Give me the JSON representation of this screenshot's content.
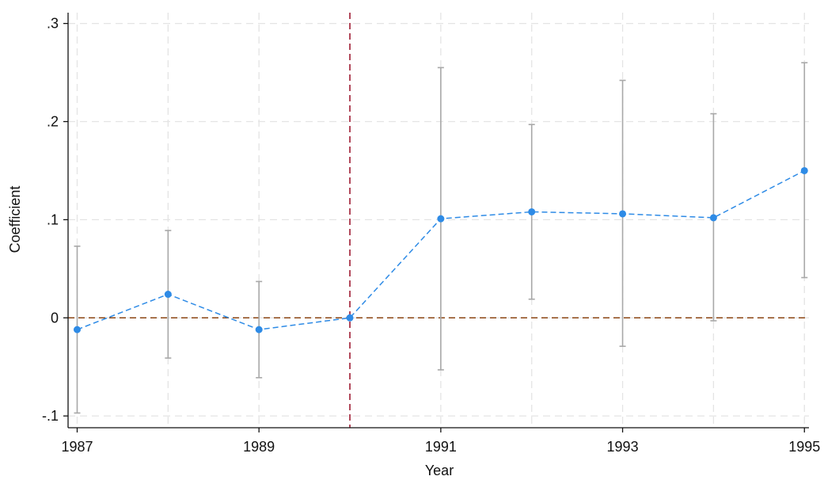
{
  "chart_data": {
    "type": "scatter",
    "title": "",
    "xlabel": "Year",
    "ylabel": "Coefficient",
    "xlim": [
      1986.9,
      1995.05
    ],
    "ylim": [
      -0.112,
      0.311
    ],
    "x_ticks": [
      {
        "value": 1987,
        "label": "1987"
      },
      {
        "value": 1989,
        "label": "1989"
      },
      {
        "value": 1991,
        "label": "1991"
      },
      {
        "value": 1993,
        "label": "1993"
      },
      {
        "value": 1995,
        "label": "1995"
      }
    ],
    "y_ticks": [
      {
        "value": -0.1,
        "label": "-.1"
      },
      {
        "value": 0,
        "label": "0"
      },
      {
        "value": 0.1,
        "label": ".1"
      },
      {
        "value": 0.2,
        "label": ".2"
      },
      {
        "value": 0.3,
        "label": ".3"
      }
    ],
    "vertical_grid_years": [
      1987,
      1988,
      1989,
      1991,
      1992,
      1993,
      1994,
      1995
    ],
    "grid": true,
    "reference_lines": {
      "vertical_x": 1990,
      "horizontal_y": 0
    },
    "series": [
      {
        "points": [
          {
            "x": 1987,
            "y": -0.012,
            "ci_low": -0.097,
            "ci_high": 0.073
          },
          {
            "x": 1988,
            "y": 0.024,
            "ci_low": -0.041,
            "ci_high": 0.089
          },
          {
            "x": 1989,
            "y": -0.012,
            "ci_low": -0.061,
            "ci_high": 0.037
          },
          {
            "x": 1990,
            "y": 0.0,
            "ci_low": null,
            "ci_high": null
          },
          {
            "x": 1991,
            "y": 0.101,
            "ci_low": -0.053,
            "ci_high": 0.255
          },
          {
            "x": 1992,
            "y": 0.108,
            "ci_low": 0.019,
            "ci_high": 0.197
          },
          {
            "x": 1993,
            "y": 0.106,
            "ci_low": -0.029,
            "ci_high": 0.242
          },
          {
            "x": 1994,
            "y": 0.102,
            "ci_low": -0.003,
            "ci_high": 0.208
          },
          {
            "x": 1995,
            "y": 0.15,
            "ci_low": 0.041,
            "ci_high": 0.26
          }
        ]
      }
    ],
    "colors": {
      "series_line": "#2e8be6",
      "marker": "#2e8be6",
      "ci_bar": "#a8a8a8",
      "grid": "#e4e4e4",
      "vertical_ref": "#9e1b32",
      "horizontal_ref": "#8b4513",
      "axis": "#111111"
    }
  }
}
